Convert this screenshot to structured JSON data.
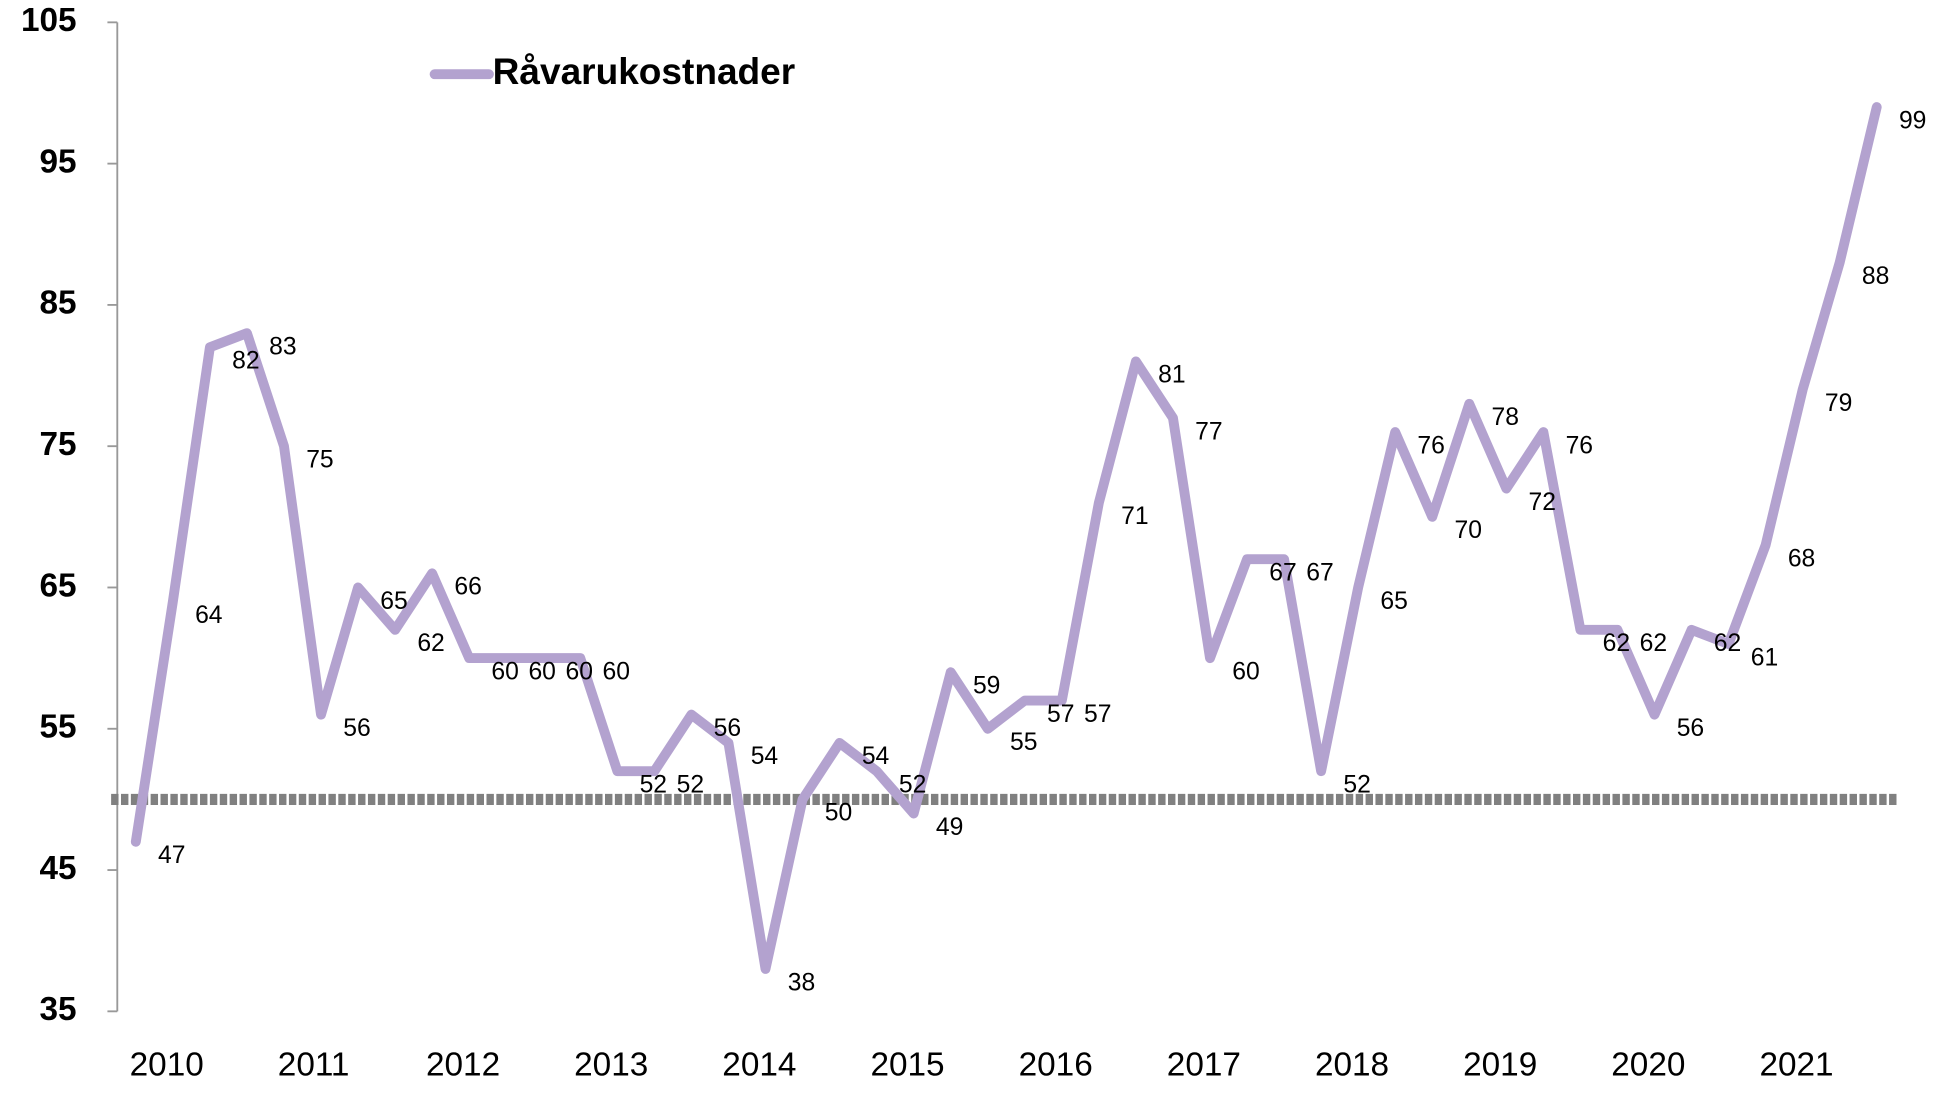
{
  "chart_data": {
    "type": "line",
    "categories": [
      "2010",
      null,
      null,
      null,
      "2011",
      null,
      null,
      null,
      "2012",
      null,
      null,
      null,
      "2013",
      null,
      null,
      null,
      "2014",
      null,
      null,
      null,
      "2015",
      null,
      null,
      null,
      "2016",
      null,
      null,
      null,
      "2017",
      null,
      null,
      null,
      "2018",
      null,
      null,
      null,
      "2019",
      null,
      null,
      null,
      "2020",
      null,
      null,
      null,
      "2021",
      null,
      null,
      null
    ],
    "series": [
      {
        "name": "Råvarukostnader",
        "color": "#b3a2cf",
        "values": [
          47,
          64,
          82,
          83,
          75,
          56,
          65,
          62,
          66,
          60,
          60,
          60,
          60,
          52,
          52,
          56,
          54,
          38,
          50,
          54,
          52,
          49,
          59,
          55,
          57,
          57,
          71,
          81,
          77,
          60,
          67,
          67,
          52,
          65,
          76,
          70,
          78,
          72,
          76,
          62,
          62,
          56,
          62,
          61,
          68,
          79,
          88,
          99
        ]
      }
    ],
    "ylim": [
      35,
      105
    ],
    "yticks": [
      35,
      45,
      55,
      65,
      75,
      85,
      95,
      105
    ],
    "reference_line": 50,
    "reference_color": "#808080",
    "legend": "top-left",
    "grid": false
  }
}
